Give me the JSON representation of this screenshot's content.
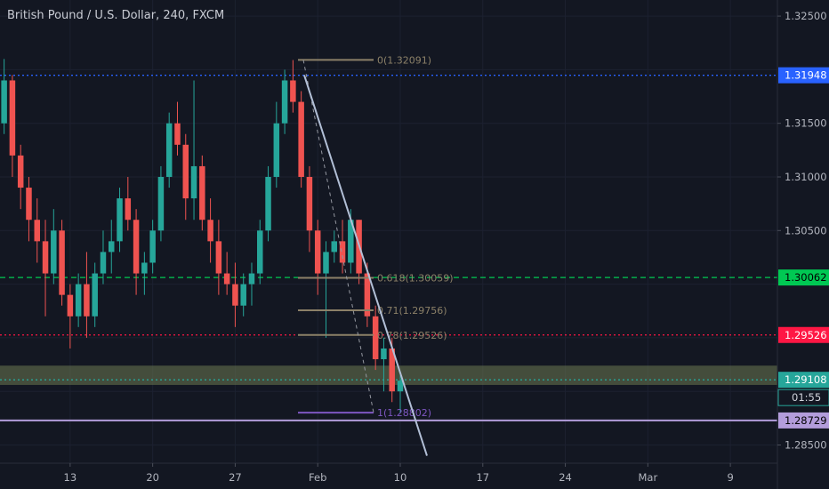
{
  "chart_data": {
    "type": "candlestick",
    "title": "British Pound / U.S. Dollar, 240, FXCM",
    "y_axis": {
      "range": [
        1.2833,
        1.3265
      ],
      "ticks": [
        "1.32500",
        "1.31500",
        "1.31000",
        "1.30500",
        "1.28500"
      ]
    },
    "x_axis": {
      "ticks": [
        {
          "label": "13",
          "bar": 8
        },
        {
          "label": "20",
          "bar": 18
        },
        {
          "label": "27",
          "bar": 28
        },
        {
          "label": "Feb",
          "bar": 38
        },
        {
          "label": "10",
          "bar": 48
        },
        {
          "label": "17",
          "bar": 58
        },
        {
          "label": "24",
          "bar": 68
        },
        {
          "label": "Mar",
          "bar": 78
        },
        {
          "label": "9",
          "bar": 88
        }
      ],
      "bars_total": 94.2
    },
    "candles": [
      [
        1.315,
        1.321,
        1.314,
        1.319
      ],
      [
        1.319,
        1.3195,
        1.31,
        1.312
      ],
      [
        1.312,
        1.313,
        1.307,
        1.309
      ],
      [
        1.309,
        1.31,
        1.304,
        1.306
      ],
      [
        1.306,
        1.308,
        1.302,
        1.304
      ],
      [
        1.304,
        1.306,
        1.297,
        1.301
      ],
      [
        1.301,
        1.307,
        1.3,
        1.305
      ],
      [
        1.305,
        1.306,
        1.298,
        1.299
      ],
      [
        1.299,
        1.3,
        1.294,
        1.297
      ],
      [
        1.297,
        1.301,
        1.296,
        1.3
      ],
      [
        1.3,
        1.303,
        1.295,
        1.297
      ],
      [
        1.297,
        1.302,
        1.296,
        1.301
      ],
      [
        1.301,
        1.305,
        1.3,
        1.303
      ],
      [
        1.303,
        1.306,
        1.301,
        1.304
      ],
      [
        1.304,
        1.309,
        1.303,
        1.308
      ],
      [
        1.308,
        1.31,
        1.305,
        1.306
      ],
      [
        1.306,
        1.307,
        1.299,
        1.301
      ],
      [
        1.301,
        1.303,
        1.299,
        1.302
      ],
      [
        1.302,
        1.306,
        1.301,
        1.305
      ],
      [
        1.305,
        1.311,
        1.304,
        1.31
      ],
      [
        1.31,
        1.316,
        1.309,
        1.315
      ],
      [
        1.315,
        1.317,
        1.312,
        1.313
      ],
      [
        1.313,
        1.314,
        1.306,
        1.308
      ],
      [
        1.308,
        1.319,
        1.306,
        1.311
      ],
      [
        1.311,
        1.312,
        1.305,
        1.306
      ],
      [
        1.306,
        1.308,
        1.302,
        1.304
      ],
      [
        1.304,
        1.306,
        1.299,
        1.301
      ],
      [
        1.301,
        1.303,
        1.299,
        1.3
      ],
      [
        1.3,
        1.302,
        1.296,
        1.298
      ],
      [
        1.298,
        1.301,
        1.297,
        1.3
      ],
      [
        1.3,
        1.302,
        1.298,
        1.301
      ],
      [
        1.301,
        1.306,
        1.3,
        1.305
      ],
      [
        1.305,
        1.311,
        1.304,
        1.31
      ],
      [
        1.31,
        1.317,
        1.309,
        1.315
      ],
      [
        1.315,
        1.32,
        1.314,
        1.319
      ],
      [
        1.319,
        1.3209,
        1.316,
        1.317
      ],
      [
        1.317,
        1.318,
        1.309,
        1.31
      ],
      [
        1.31,
        1.311,
        1.303,
        1.305
      ],
      [
        1.305,
        1.306,
        1.299,
        1.301
      ],
      [
        1.301,
        1.304,
        1.295,
        1.303
      ],
      [
        1.303,
        1.305,
        1.302,
        1.304
      ],
      [
        1.304,
        1.306,
        1.301,
        1.302
      ],
      [
        1.302,
        1.307,
        1.301,
        1.306
      ],
      [
        1.306,
        1.306,
        1.3,
        1.301
      ],
      [
        1.301,
        1.302,
        1.296,
        1.297
      ],
      [
        1.297,
        1.298,
        1.292,
        1.293
      ],
      [
        1.293,
        1.295,
        1.29,
        1.294
      ],
      [
        1.294,
        1.295,
        1.289,
        1.29
      ],
      [
        1.29,
        1.2915,
        1.288,
        1.291
      ]
    ]
  },
  "fib_labels": [
    "0(1.32091)",
    "0.618(1.30059)",
    "0.71(1.29756)",
    "0.78(1.29526)",
    "1(1.28802)"
  ],
  "levels": [
    {
      "name": "blue-level",
      "value": 1.31948,
      "label": "1.31948",
      "color": "#2962ff",
      "text_color": "#ffffff",
      "style": "dotted"
    },
    {
      "name": "green-level",
      "value": 1.30062,
      "label": "1.30062",
      "color": "#00c853",
      "text_color": "#000000",
      "style": "dashed"
    },
    {
      "name": "red-level",
      "value": 1.29526,
      "label": "1.29526",
      "color": "#ff1744",
      "text_color": "#ffffff",
      "style": "dotted"
    },
    {
      "name": "current-price",
      "value": 1.29108,
      "label": "1.29108",
      "color": "#26a69a",
      "text_color": "#ffffff",
      "style": "dotted"
    },
    {
      "name": "lavender-level",
      "value": 1.28729,
      "label": "1.28729",
      "color": "#b39ddb",
      "text_color": "#000000",
      "style": "solid"
    }
  ],
  "countdown": "01:55",
  "colors": {
    "up": "#26a69a",
    "down": "#ef5350",
    "zone": "#6d7a52",
    "trendline": "#b2bfd6",
    "fib_gray": "#8c8168",
    "fib_purple": "#7e57c2"
  }
}
